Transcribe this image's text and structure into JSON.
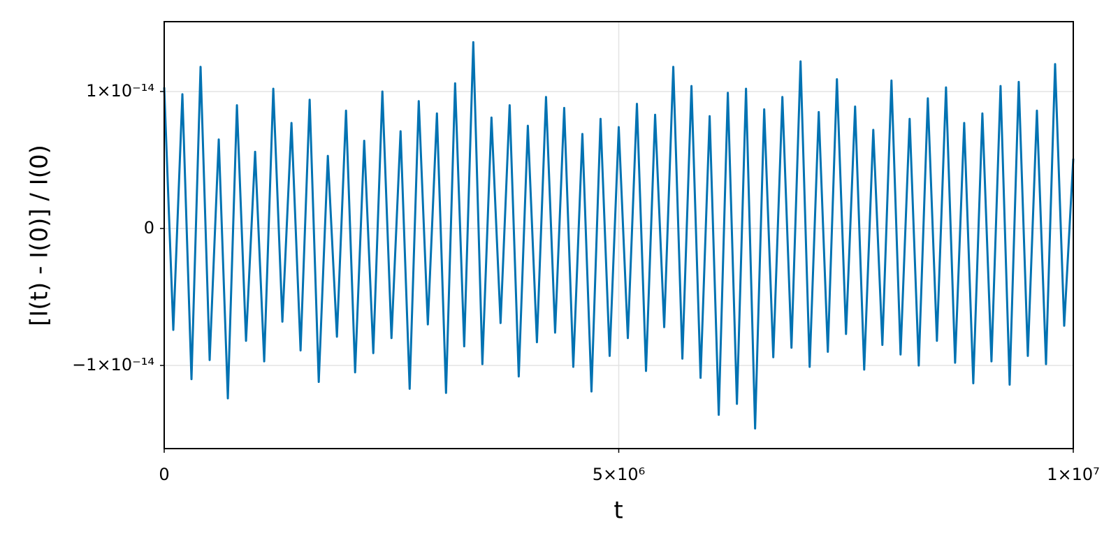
{
  "chart_data": {
    "type": "line",
    "x_label": "t",
    "y_label": "[I(t) - I(0)] / I(0)",
    "x": [
      0,
      100000,
      200000,
      300000,
      400000,
      500000,
      600000,
      700000,
      800000,
      900000,
      1000000,
      1100000,
      1200000,
      1300000,
      1400000,
      1500000,
      1600000,
      1700000,
      1800000,
      1900000,
      2000000,
      2100000,
      2200000,
      2300000,
      2400000,
      2500000,
      2600000,
      2700000,
      2800000,
      2900000,
      3000000,
      3100000,
      3200000,
      3300000,
      3400000,
      3500000,
      3600000,
      3700000,
      3800000,
      3900000,
      4000000,
      4100000,
      4200000,
      4300000,
      4400000,
      4500000,
      4600000,
      4700000,
      4800000,
      4900000,
      5000000,
      5100000,
      5200000,
      5300000,
      5400000,
      5500000,
      5600000,
      5700000,
      5800000,
      5900000,
      6000000,
      6100000,
      6200000,
      6300000,
      6400000,
      6500000,
      6600000,
      6700000,
      6800000,
      6900000,
      7000000,
      7100000,
      7200000,
      7300000,
      7400000,
      7500000,
      7600000,
      7700000,
      7800000,
      7900000,
      8000000,
      8100000,
      8200000,
      8300000,
      8400000,
      8500000,
      8600000,
      8700000,
      8800000,
      8900000,
      9000000,
      9100000,
      9200000,
      9300000,
      9400000,
      9500000,
      9600000,
      9700000,
      9800000,
      9900000,
      10000000
    ],
    "series": [
      {
        "color": "#0072b2",
        "values": [
          1.03e-14,
          -7.4e-15,
          9.8e-15,
          -1.1e-14,
          1.18e-14,
          -9.6e-15,
          6.5e-15,
          -1.24e-14,
          9e-15,
          -8.2e-15,
          5.6e-15,
          -9.7e-15,
          1.02e-14,
          -6.8e-15,
          7.7e-15,
          -8.9e-15,
          9.4e-15,
          -1.12e-14,
          5.3e-15,
          -7.9e-15,
          8.6e-15,
          -1.05e-14,
          6.4e-15,
          -9.1e-15,
          1e-14,
          -8e-15,
          7.1e-15,
          -1.17e-14,
          9.3e-15,
          -7e-15,
          8.4e-15,
          -1.2e-14,
          1.06e-14,
          -8.6e-15,
          1.36e-14,
          -9.9e-15,
          8.1e-15,
          -6.9e-15,
          9e-15,
          -1.08e-14,
          7.5e-15,
          -8.3e-15,
          9.6e-15,
          -7.6e-15,
          8.8e-15,
          -1.01e-14,
          6.9e-15,
          -1.19e-14,
          8e-15,
          -9.3e-15,
          7.4e-15,
          -8e-15,
          9.1e-15,
          -1.04e-14,
          8.3e-15,
          -7.2e-15,
          1.18e-14,
          -9.5e-15,
          1.04e-14,
          -1.09e-14,
          8.2e-15,
          -1.36e-14,
          9.9e-15,
          -1.28e-14,
          1.02e-14,
          -1.46e-14,
          8.7e-15,
          -9.4e-15,
          9.6e-15,
          -8.7e-15,
          1.22e-14,
          -1.01e-14,
          8.5e-15,
          -9e-15,
          1.09e-14,
          -7.7e-15,
          8.9e-15,
          -1.03e-14,
          7.2e-15,
          -8.5e-15,
          1.08e-14,
          -9.2e-15,
          8e-15,
          -1e-14,
          9.5e-15,
          -8.2e-15,
          1.03e-14,
          -9.8e-15,
          7.7e-15,
          -1.13e-14,
          8.4e-15,
          -9.7e-15,
          1.04e-14,
          -1.14e-14,
          1.07e-14,
          -9.3e-15,
          8.6e-15,
          -9.9e-15,
          1.2e-14,
          -7.1e-15,
          5.1e-15
        ]
      }
    ],
    "xlim": [
      0,
      10000000
    ],
    "ylim": [
      -1.607e-14,
      1.51e-14
    ],
    "xticks": [
      0,
      {
        "value": 5000000,
        "label": "5×10⁶"
      },
      {
        "value": 10000000,
        "label": "1×10⁷"
      }
    ],
    "yticks": [
      {
        "value": -1e-14,
        "label": "−1×10⁻¹⁴"
      },
      0,
      {
        "value": 1e-14,
        "label": "1×10⁻¹⁴"
      }
    ],
    "grid": true
  }
}
